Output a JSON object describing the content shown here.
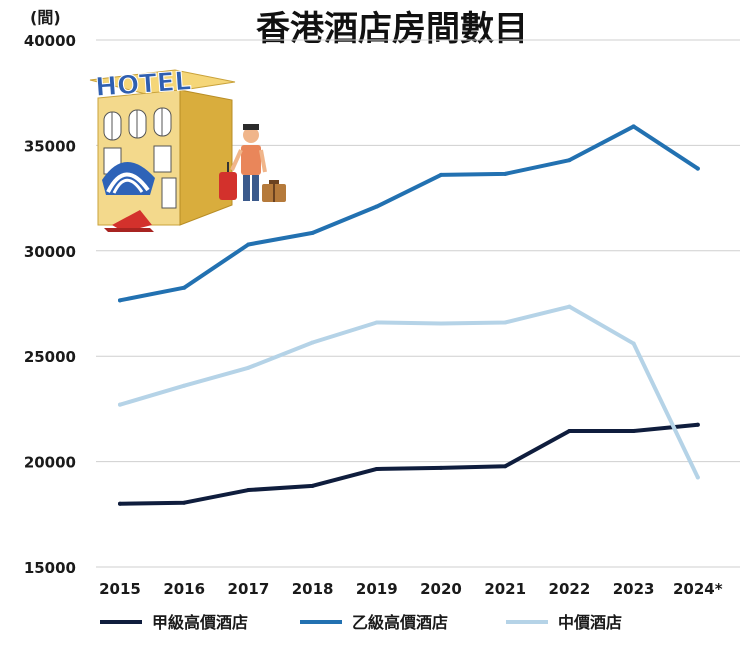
{
  "chart_data": {
    "type": "line",
    "title": "香港酒店房間數目",
    "ylabel": "(間)",
    "xlabel": "",
    "categories": [
      "2015",
      "2016",
      "2017",
      "2018",
      "2019",
      "2020",
      "2021",
      "2022",
      "2023",
      "2024*"
    ],
    "ylim": [
      15000,
      40000
    ],
    "yticks": [
      15000,
      20000,
      25000,
      30000,
      35000,
      40000
    ],
    "grid": "horizontal",
    "legend_position": "bottom",
    "series": [
      {
        "name": "甲級高價酒店",
        "color": "#0f1d3d",
        "values": [
          18000,
          18050,
          18650,
          18850,
          19650,
          19700,
          19780,
          21450,
          21450,
          21750
        ]
      },
      {
        "name": "乙級高價酒店",
        "color": "#2271b1",
        "values": [
          27650,
          28250,
          30300,
          30850,
          32100,
          33600,
          33650,
          34300,
          35900,
          33900
        ]
      },
      {
        "name": "中價酒店",
        "color": "#b5d3e7",
        "values": [
          22700,
          23600,
          24450,
          25650,
          26600,
          26550,
          26600,
          27350,
          25600,
          19250
        ]
      }
    ]
  },
  "illustration": {
    "sign_text": "HOTEL",
    "icons": [
      "hotel-building-icon",
      "traveler-icon",
      "suitcase-icon"
    ]
  }
}
